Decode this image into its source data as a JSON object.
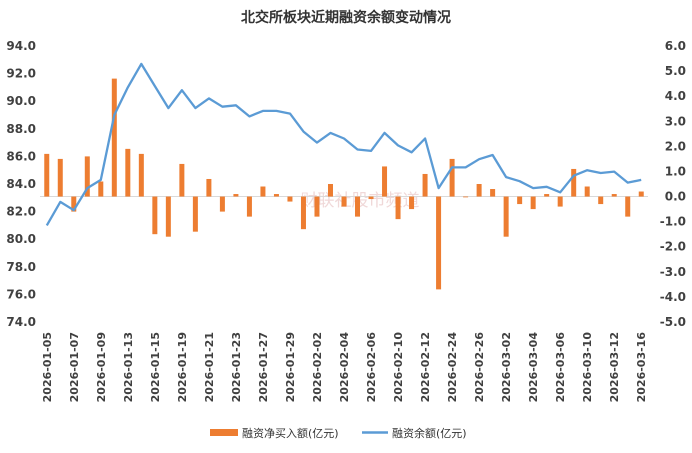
{
  "chart_data": {
    "type": "bar+line",
    "title": "北交所板块近期融资余额变动情况",
    "watermark": "财联社股市频道",
    "y_left": {
      "min": 74.0,
      "max": 94.0,
      "step": 2.0,
      "ticks": [
        "74.0",
        "76.0",
        "78.0",
        "80.0",
        "82.0",
        "84.0",
        "86.0",
        "88.0",
        "90.0",
        "92.0",
        "94.0"
      ]
    },
    "y_right": {
      "min": -5.0,
      "max": 6.0,
      "step": 1.0,
      "ticks": [
        "-5.0",
        "-4.0",
        "-3.0",
        "-2.0",
        "-1.0",
        "0.0",
        "1.0",
        "2.0",
        "3.0",
        "4.0",
        "5.0",
        "6.0"
      ]
    },
    "x_tick_labels": [
      "2026-01-05",
      "2026-01-07",
      "2026-01-09",
      "2026-01-13",
      "2026-01-15",
      "2026-01-19",
      "2026-01-21",
      "2026-01-23",
      "2026-01-27",
      "2026-01-29",
      "2026-02-02",
      "2026-02-04",
      "2026-02-06",
      "2026-02-10",
      "2026-02-12",
      "2026-02-24",
      "2026-02-26",
      "2026-03-02",
      "2026-03-04",
      "2026-03-06",
      "2026-03-10",
      "2026-03-12",
      "2026-03-16"
    ],
    "categories": [
      "2026-01-05",
      "2026-01-06",
      "2026-01-07",
      "2026-01-08",
      "2026-01-09",
      "2026-01-12",
      "2026-01-13",
      "2026-01-14",
      "2026-01-15",
      "2026-01-16",
      "2026-01-19",
      "2026-01-20",
      "2026-01-21",
      "2026-01-22",
      "2026-01-23",
      "2026-01-26",
      "2026-01-27",
      "2026-01-28",
      "2026-01-29",
      "2026-01-30",
      "2026-02-02",
      "2026-02-03",
      "2026-02-04",
      "2026-02-05",
      "2026-02-06",
      "2026-02-09",
      "2026-02-10",
      "2026-02-11",
      "2026-02-12",
      "2026-02-13",
      "2026-02-24",
      "2026-02-25",
      "2026-02-26",
      "2026-02-27",
      "2026-03-02",
      "2026-03-03",
      "2026-03-04",
      "2026-03-05",
      "2026-03-06",
      "2026-03-09",
      "2026-03-10",
      "2026-03-11",
      "2026-03-12",
      "2026-03-13",
      "2026-03-16"
    ],
    "series": [
      {
        "name": "融资净买入额(亿元)",
        "type": "bar",
        "axis": "right",
        "color": "#ED7D31",
        "values": [
          1.7,
          1.5,
          -0.6,
          1.6,
          0.6,
          4.7,
          1.9,
          1.7,
          -1.5,
          -1.6,
          1.3,
          -1.4,
          0.7,
          -0.6,
          0.1,
          -0.8,
          0.4,
          0.1,
          -0.2,
          -1.3,
          -0.8,
          0.5,
          -0.4,
          -0.8,
          -0.1,
          1.2,
          -0.9,
          -0.5,
          0.9,
          -3.7,
          1.5,
          0.0,
          0.5,
          0.3,
          -1.6,
          -0.3,
          -0.5,
          0.1,
          -0.4,
          1.1,
          0.4,
          -0.3,
          0.1,
          -0.8,
          0.2
        ]
      },
      {
        "name": "融资余额(亿元)",
        "type": "line",
        "axis": "left",
        "color": "#5B9BD5",
        "values": [
          81.0,
          82.7,
          82.1,
          83.7,
          84.3,
          89.0,
          91.0,
          92.7,
          91.1,
          89.5,
          90.8,
          89.5,
          90.2,
          89.6,
          89.7,
          88.9,
          89.3,
          89.3,
          89.1,
          87.8,
          87.0,
          87.7,
          87.3,
          86.5,
          86.4,
          87.7,
          86.8,
          86.3,
          87.3,
          83.7,
          85.2,
          85.2,
          85.8,
          86.1,
          84.5,
          84.2,
          83.7,
          83.8,
          83.4,
          84.6,
          85.0,
          84.8,
          84.9,
          84.1,
          84.3
        ]
      }
    ],
    "grid": false,
    "legend_position": "bottom"
  }
}
